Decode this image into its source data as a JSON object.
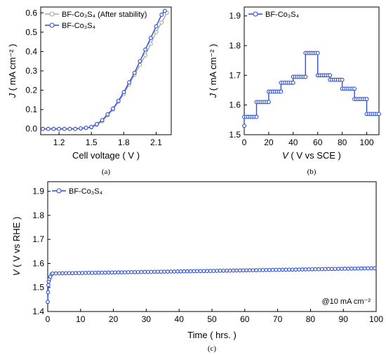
{
  "colors": {
    "blue": "#2b4fd6",
    "gray": "#a8a8a8"
  },
  "chart_data": [
    {
      "type": "line",
      "caption": "(a)",
      "xlabel": "Cell voltage ( V )",
      "ylabel_italic": "J",
      "ylabel_rest": " ( mA cm⁻² )",
      "xlim": [
        1.03,
        2.24
      ],
      "ylim": [
        -0.03,
        0.63
      ],
      "xticks": [
        1.2,
        1.5,
        1.8,
        2.1
      ],
      "xtick_labels": [
        "1.2",
        "1.5",
        "1.8",
        "2.1"
      ],
      "yticks": [
        0.0,
        0.1,
        0.2,
        0.3,
        0.4,
        0.5,
        0.6
      ],
      "ytick_labels": [
        "0.0",
        "0.1",
        "0.2",
        "0.3",
        "0.4",
        "0.5",
        "0.6"
      ],
      "legend_position": "top-left",
      "series": [
        {
          "name": "BF-Co₃S₄ (After stability)",
          "color": "gray",
          "x": [
            1.05,
            1.1,
            1.15,
            1.2,
            1.25,
            1.3,
            1.35,
            1.4,
            1.45,
            1.5,
            1.55,
            1.6,
            1.65,
            1.7,
            1.75,
            1.8,
            1.85,
            1.9,
            1.95,
            2.0,
            2.05,
            2.1,
            2.15,
            2.2
          ],
          "y": [
            0.0,
            0.0,
            0.0,
            0.0,
            0.0,
            0.0,
            0.0,
            0.002,
            0.004,
            0.008,
            0.02,
            0.04,
            0.07,
            0.1,
            0.14,
            0.18,
            0.23,
            0.28,
            0.33,
            0.38,
            0.44,
            0.5,
            0.55,
            0.6
          ]
        },
        {
          "name": "BF-Co₃S₄",
          "color": "blue",
          "x": [
            1.05,
            1.1,
            1.15,
            1.2,
            1.25,
            1.3,
            1.35,
            1.4,
            1.45,
            1.5,
            1.55,
            1.6,
            1.65,
            1.7,
            1.75,
            1.8,
            1.85,
            1.9,
            1.95,
            2.0,
            2.05,
            2.1,
            2.15,
            2.18
          ],
          "y": [
            0.0,
            0.0,
            0.0,
            0.0,
            0.0,
            0.0,
            0.0,
            0.003,
            0.006,
            0.01,
            0.025,
            0.045,
            0.075,
            0.105,
            0.145,
            0.19,
            0.24,
            0.29,
            0.35,
            0.41,
            0.47,
            0.53,
            0.59,
            0.61
          ]
        }
      ]
    },
    {
      "type": "line",
      "caption": "(b)",
      "xlabel_italic": "V",
      "xlabel_rest": " ( V vs SCE )",
      "ylabel_italic": "J",
      "ylabel_rest": " ( mA cm⁻² )",
      "xlim": [
        0,
        110
      ],
      "ylim": [
        1.5,
        1.93
      ],
      "xticks": [
        0,
        20,
        40,
        60,
        80,
        100
      ],
      "xtick_labels": [
        "0",
        "20",
        "40",
        "60",
        "80",
        "100"
      ],
      "yticks": [
        1.5,
        1.6,
        1.7,
        1.8,
        1.9
      ],
      "ytick_labels": [
        "1.5",
        "1.6",
        "1.7",
        "1.8",
        "1.9"
      ],
      "legend_position": "top-left",
      "series": [
        {
          "name": "BF-Co₃S₄",
          "color": "blue",
          "steps": [
            {
              "x0": 0,
              "x1": 10,
              "y": 1.56
            },
            {
              "x0": 10,
              "x1": 20,
              "y": 1.61
            },
            {
              "x0": 20,
              "x1": 30,
              "y": 1.645
            },
            {
              "x0": 30,
              "x1": 40,
              "y": 1.675
            },
            {
              "x0": 40,
              "x1": 50,
              "y": 1.695
            },
            {
              "x0": 50,
              "x1": 60,
              "y": 1.775
            },
            {
              "x0": 60,
              "x1": 70,
              "y": 1.7
            },
            {
              "x0": 70,
              "x1": 80,
              "y": 1.685
            },
            {
              "x0": 80,
              "x1": 90,
              "y": 1.655
            },
            {
              "x0": 90,
              "x1": 100,
              "y": 1.62
            },
            {
              "x0": 100,
              "x1": 110,
              "y": 1.57
            }
          ],
          "start": {
            "x": 0,
            "y": 1.53
          }
        }
      ]
    },
    {
      "type": "line",
      "caption": "(c)",
      "xlabel": "Time ( hrs. )",
      "ylabel_italic": "V",
      "ylabel_rest": " ( V vs RHE )",
      "xlim": [
        0,
        100
      ],
      "ylim": [
        1.4,
        1.94
      ],
      "xticks": [
        0,
        10,
        20,
        30,
        40,
        50,
        60,
        70,
        80,
        90,
        100
      ],
      "xtick_labels": [
        "0",
        "10",
        "20",
        "30",
        "40",
        "50",
        "60",
        "70",
        "80",
        "90",
        "100"
      ],
      "yticks": [
        1.4,
        1.5,
        1.6,
        1.7,
        1.8,
        1.9
      ],
      "ytick_labels": [
        "1.4",
        "1.5",
        "1.6",
        "1.7",
        "1.8",
        "1.9"
      ],
      "annotation": "@10 mA cm⁻²",
      "legend_position": "top-left",
      "series": [
        {
          "name": "BF-Co₃S₄",
          "color": "blue",
          "start_x": [
            0.0,
            0.1,
            0.2,
            0.3,
            0.5,
            0.8,
            1.2
          ],
          "start_y": [
            1.44,
            1.48,
            1.51,
            1.525,
            1.535,
            1.545,
            1.555
          ],
          "y_start": 1.558,
          "y_end": 1.58
        }
      ]
    }
  ]
}
